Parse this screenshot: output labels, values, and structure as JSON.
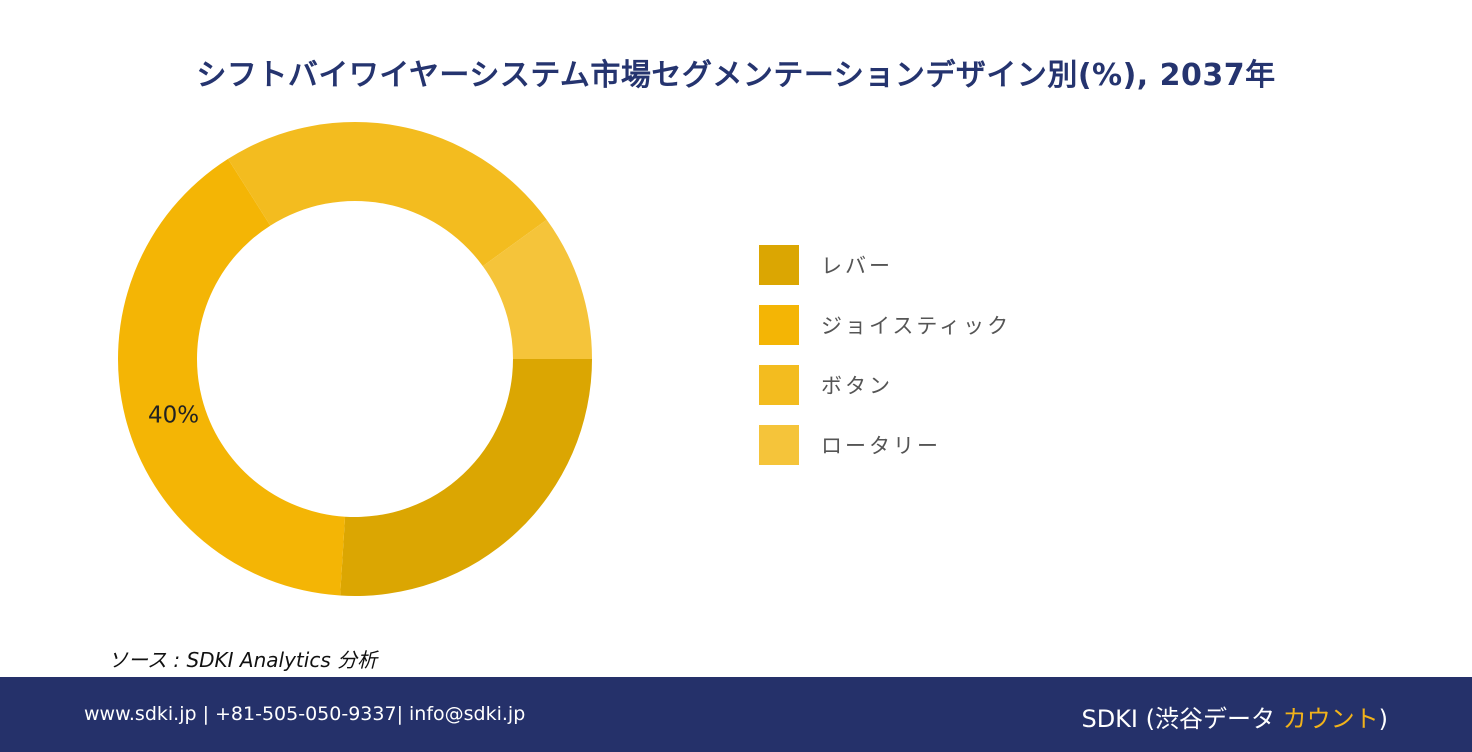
{
  "title": "シフトバイワイヤーシステム市場セグメンテーションデザイン別(%), 2037年",
  "chart_data": {
    "type": "pie",
    "variant": "donut",
    "series": [
      {
        "name": "レバー",
        "value": 26,
        "color": "#dba602"
      },
      {
        "name": "ジョイスティック",
        "value": 40,
        "color": "#f4b505"
      },
      {
        "name": "ボタン",
        "value": 24,
        "color": "#f3bc1f"
      },
      {
        "name": "ロータリー",
        "value": 10,
        "color": "#f5c43a"
      }
    ],
    "data_labels": [
      {
        "series": "ジョイスティック",
        "text": "40%"
      }
    ],
    "legend_position": "right"
  },
  "source": "ソース : SDKI Analytics 分析",
  "footer": {
    "contact": "www.sdki.jp | +81-505-050-9337| info@sdki.jp",
    "brand_prefix": "SDKI (渋谷データ ",
    "brand_accent": "カウント",
    "brand_suffix": ")"
  }
}
